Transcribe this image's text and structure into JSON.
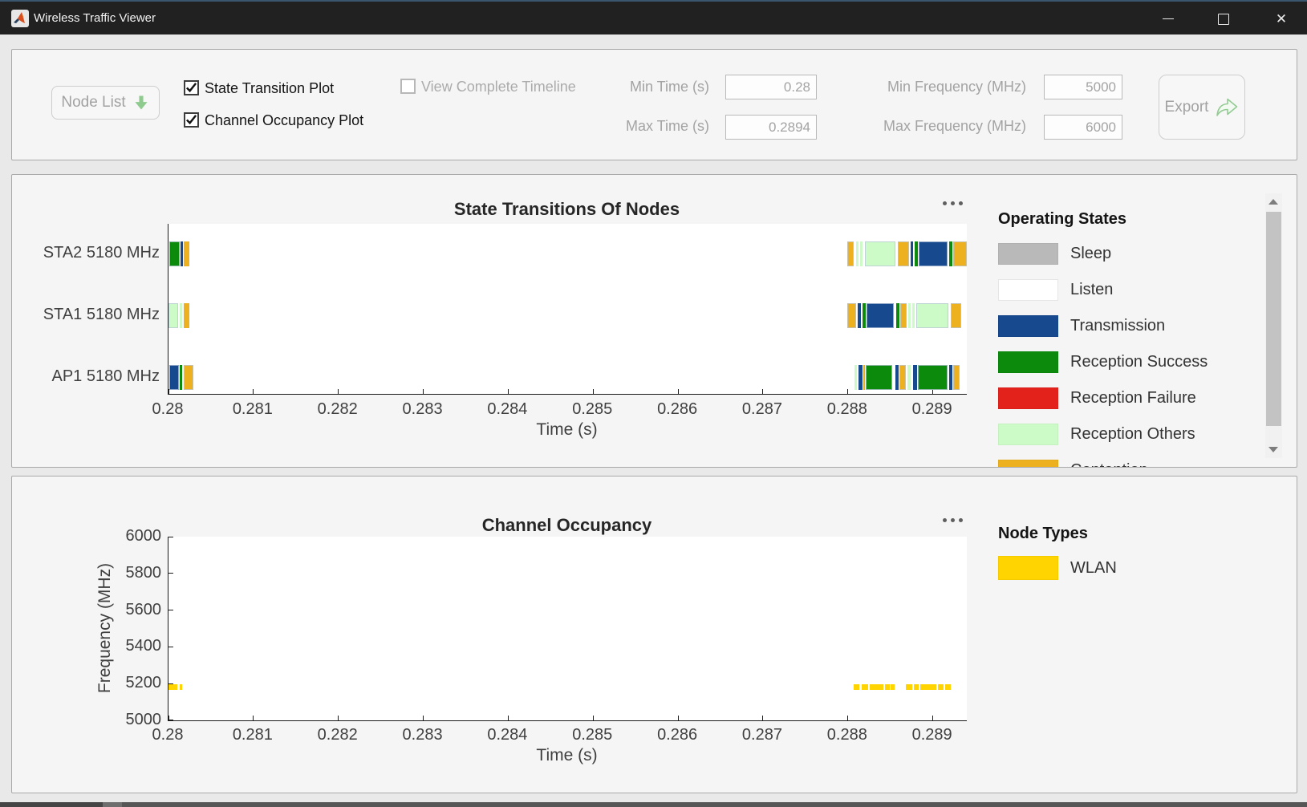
{
  "window": {
    "title": "Wireless Traffic Viewer",
    "controls": {
      "minimize": "minimize",
      "maximize": "maximize",
      "close": "close"
    }
  },
  "toolbar": {
    "node_list": "Node List",
    "checkboxes": [
      {
        "label": "State Transition Plot",
        "checked": true,
        "disabled": false
      },
      {
        "label": "Channel Occupancy Plot",
        "checked": true,
        "disabled": false
      },
      {
        "label": "View Complete Timeline",
        "checked": false,
        "disabled": true
      }
    ],
    "fields": [
      {
        "label": "Min Time (s)",
        "value": "0.28"
      },
      {
        "label": "Max Time (s)",
        "value": "0.2894"
      },
      {
        "label": "Min Frequency (MHz)",
        "value": "5000"
      },
      {
        "label": "Max Frequency (MHz)",
        "value": "6000"
      }
    ],
    "export": "Export"
  },
  "state_colors": {
    "sleep": "#b9b9b9",
    "listen": "#ffffff",
    "transmission": "#17498f",
    "reception_success": "#0b8a0b",
    "reception_failure": "#e3221c",
    "reception_others": "#ccfbc7",
    "contention": "#edb120",
    "wlan": "#ffd400"
  },
  "chart_data": [
    {
      "type": "timeline",
      "title": "State Transitions Of Nodes",
      "xlabel": "Time (s)",
      "xlim": [
        0.28,
        0.2894
      ],
      "x_tick_values": [
        0.28,
        0.281,
        0.282,
        0.283,
        0.284,
        0.285,
        0.286,
        0.287,
        0.288,
        0.289
      ],
      "x_tick_labels": [
        "0.28",
        "0.281",
        "0.282",
        "0.283",
        "0.284",
        "0.285",
        "0.286",
        "0.287",
        "0.288",
        "0.289"
      ],
      "rows": [
        {
          "label": "STA2 5180 MHz",
          "segments": [
            [
              "reception_success",
              0.280009,
              0.280132
            ],
            [
              "transmission",
              0.280142,
              0.28017
            ],
            [
              "contention",
              0.28018,
              0.280246
            ],
            [
              "contention",
              0.287993,
              0.288068
            ],
            [
              "reception_others",
              0.288096,
              0.288125
            ],
            [
              "reception_others",
              0.288144,
              0.288172
            ],
            [
              "reception_others",
              0.2882,
              0.28856
            ],
            [
              "contention",
              0.288588,
              0.28872
            ],
            [
              "transmission",
              0.288739,
              0.288767
            ],
            [
              "reception_success",
              0.288786,
              0.288824
            ],
            [
              "transmission",
              0.288833,
              0.289173
            ],
            [
              "reception_success",
              0.289192,
              0.28923
            ],
            [
              "contention",
              0.289239,
              0.2894
            ]
          ]
        },
        {
          "label": "STA1 5180 MHz",
          "segments": [
            [
              "reception_others",
              0.28,
              0.280113
            ],
            [
              "reception_others",
              0.280132,
              0.280161
            ],
            [
              "contention",
              0.28018,
              0.280246
            ],
            [
              "contention",
              0.287993,
              0.288096
            ],
            [
              "transmission",
              0.288115,
              0.288153
            ],
            [
              "reception_success",
              0.288172,
              0.28821
            ],
            [
              "transmission",
              0.288219,
              0.28854
            ],
            [
              "reception_success",
              0.288569,
              0.288607
            ],
            [
              "contention",
              0.288616,
              0.288692
            ],
            [
              "reception_others",
              0.288711,
              0.288739
            ],
            [
              "reception_others",
              0.288758,
              0.288786
            ],
            [
              "reception_others",
              0.288805,
              0.289183
            ],
            [
              "contention",
              0.289211,
              0.289334
            ]
          ]
        },
        {
          "label": "AP1 5180 MHz",
          "segments": [
            [
              "transmission",
              0.280009,
              0.280123
            ],
            [
              "reception_success",
              0.280132,
              0.280161
            ],
            [
              "contention",
              0.28018,
              0.280293
            ],
            [
              "reception_others",
              0.288078,
              0.288106
            ],
            [
              "transmission",
              0.288125,
              0.288172
            ],
            [
              "contention",
              0.288181,
              0.2882
            ],
            [
              "reception_success",
              0.28821,
              0.288521
            ],
            [
              "transmission",
              0.288559,
              0.288597
            ],
            [
              "contention",
              0.288607,
              0.288682
            ],
            [
              "reception_others",
              0.288701,
              0.288739
            ],
            [
              "transmission",
              0.288767,
              0.288814
            ],
            [
              "reception_success",
              0.288824,
              0.289173
            ],
            [
              "transmission",
              0.289192,
              0.28923
            ],
            [
              "contention",
              0.289239,
              0.289315
            ]
          ]
        }
      ],
      "legend": {
        "title": "Operating States",
        "items": [
          {
            "label": "Sleep",
            "color_key": "sleep"
          },
          {
            "label": "Listen",
            "color_key": "listen"
          },
          {
            "label": "Transmission",
            "color_key": "transmission"
          },
          {
            "label": "Reception Success",
            "color_key": "reception_success"
          },
          {
            "label": "Reception Failure",
            "color_key": "reception_failure"
          },
          {
            "label": "Reception Others",
            "color_key": "reception_others"
          },
          {
            "label": "Contention",
            "color_key": "contention"
          }
        ]
      }
    },
    {
      "type": "scatter",
      "title": "Channel Occupancy",
      "xlabel": "Time (s)",
      "ylabel": "Frequency (MHz)",
      "xlim": [
        0.28,
        0.2894
      ],
      "ylim": [
        5000,
        6000
      ],
      "x_tick_values": [
        0.28,
        0.281,
        0.282,
        0.283,
        0.284,
        0.285,
        0.286,
        0.287,
        0.288,
        0.289
      ],
      "x_tick_labels": [
        "0.28",
        "0.281",
        "0.282",
        "0.283",
        "0.284",
        "0.285",
        "0.286",
        "0.287",
        "0.288",
        "0.289"
      ],
      "y_tick_values": [
        5000,
        5200,
        5400,
        5600,
        5800,
        6000
      ],
      "y_tick_labels": [
        "5000",
        "5200",
        "5400",
        "5600",
        "5800",
        "6000"
      ],
      "series": [
        {
          "name": "WLAN",
          "color_key": "wlan",
          "frequency_mhz": 5180,
          "segments": [
            [
              0.28,
              0.280104
            ],
            [
              0.280132,
              0.280161
            ],
            [
              0.288068,
              0.288134
            ],
            [
              0.288162,
              0.288238
            ],
            [
              0.288257,
              0.288418
            ],
            [
              0.288437,
              0.288493
            ],
            [
              0.288503,
              0.28855
            ],
            [
              0.288682,
              0.288758
            ],
            [
              0.288777,
              0.288833
            ],
            [
              0.288852,
              0.289041
            ],
            [
              0.28906,
              0.289126
            ],
            [
              0.289145,
              0.289211
            ]
          ]
        }
      ],
      "legend": {
        "title": "Node Types",
        "items": [
          {
            "label": "WLAN",
            "color_key": "wlan"
          }
        ]
      }
    }
  ]
}
